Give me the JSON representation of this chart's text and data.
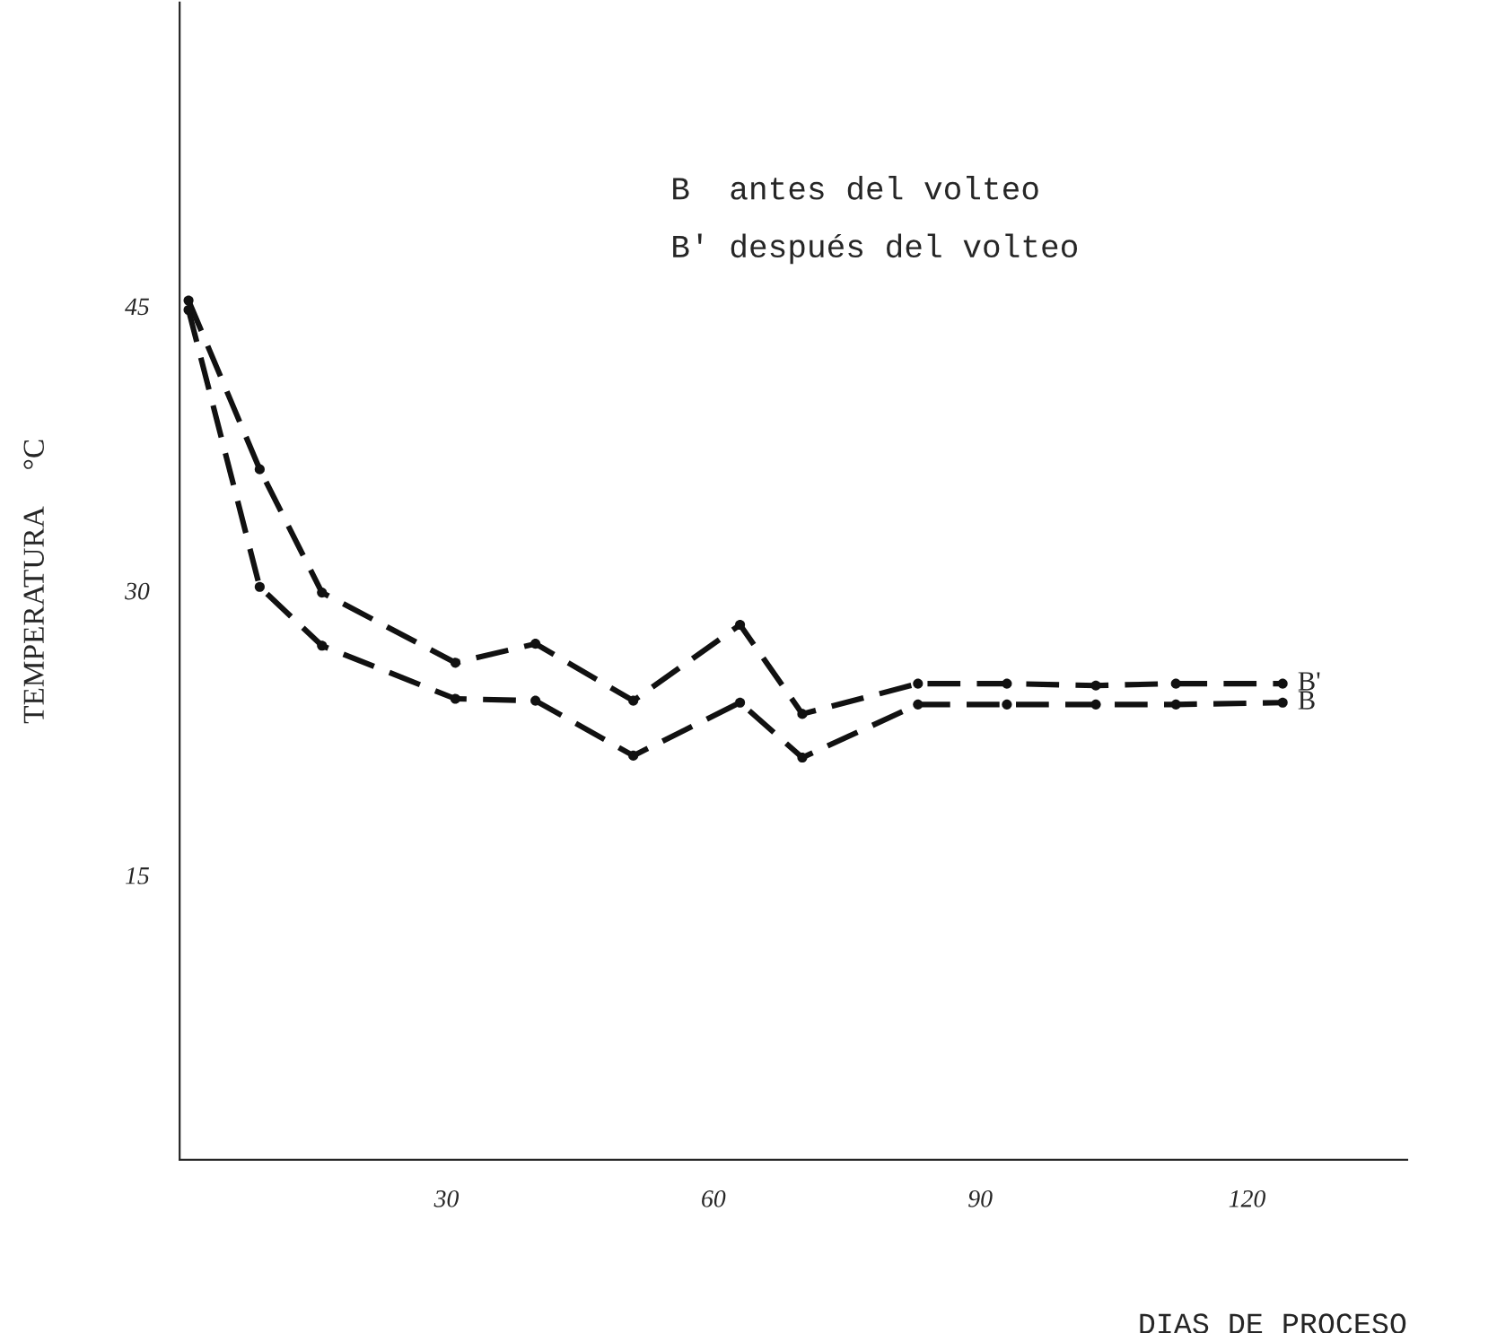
{
  "chart_data": {
    "type": "line",
    "xlabel": "DIAS DE PROCESO",
    "ylabel": "TEMPERATURA     °C",
    "annotations": [
      "B  antes del volteo",
      "B' después del volteo"
    ],
    "x": [
      1,
      9,
      16,
      31,
      40,
      51,
      63,
      70,
      83,
      93,
      103,
      112,
      124
    ],
    "series": [
      {
        "name": "B'",
        "color": "#111111",
        "values": [
          45.3,
          36.4,
          29.9,
          26.2,
          27.2,
          24.2,
          28.2,
          23.5,
          25.1,
          25.1,
          25.0,
          25.1,
          25.1
        ]
      },
      {
        "name": "B",
        "color": "#111111",
        "values": [
          44.8,
          30.2,
          27.1,
          24.3,
          24.2,
          21.3,
          24.1,
          21.2,
          24.0,
          24.0,
          24.0,
          24.0,
          24.1
        ]
      }
    ],
    "xlim": [
      0,
      138
    ],
    "ylim": [
      0,
      61
    ],
    "xticks": [
      30,
      60,
      90,
      120
    ],
    "yticks": [
      15,
      30,
      45
    ],
    "grid": false,
    "legend": false,
    "marker": "circle",
    "line_style": "dashed"
  }
}
